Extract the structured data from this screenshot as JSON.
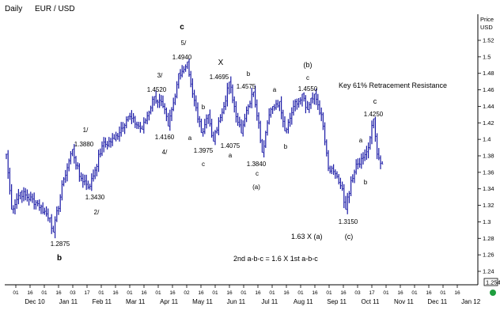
{
  "header": {
    "period": "Daily",
    "instrument": "EUR / USD"
  },
  "chart_data": {
    "type": "bar",
    "style": "ohlc",
    "series_color": "#1a1aa6",
    "y_axis_title": [
      "Price",
      "USD"
    ],
    "ylim": [
      1.23,
      1.535
    ],
    "y_ticks": [
      "1.52",
      "1.5",
      "1.48",
      "1.46",
      "1.44",
      "1.42",
      "1.4",
      "1.38",
      "1.36",
      "1.34",
      "1.32",
      "1.3",
      "1.28",
      "1.26",
      "1.24"
    ],
    "last_price": "1.254",
    "grid": false,
    "day_labels": [
      "01",
      "16",
      "01",
      "16",
      "03",
      "17",
      "01",
      "16",
      "01",
      "16",
      "01",
      "16",
      "02",
      "16",
      "01",
      "16",
      "01",
      "16",
      "01",
      "16",
      "01",
      "16",
      "01",
      "16",
      "03",
      "17",
      "01",
      "16",
      "01",
      "16",
      "01",
      "16"
    ],
    "month_labels": [
      "Dec 10",
      "Jan 11",
      "Feb 11",
      "Mar 11",
      "Apr 11",
      "May 11",
      "Jun 11",
      "Jul 11",
      "Aug 11",
      "Sep 11",
      "Oct 11",
      "Nov 11",
      "Dec 11",
      "Jan 12"
    ],
    "anchors": [
      [
        0,
        1.382
      ],
      [
        3,
        1.315
      ],
      [
        8,
        1.336
      ],
      [
        18,
        1.322
      ],
      [
        25,
        1.305
      ],
      [
        27,
        1.2875
      ],
      [
        33,
        1.352
      ],
      [
        38,
        1.388
      ],
      [
        42,
        1.355
      ],
      [
        48,
        1.343
      ],
      [
        55,
        1.392
      ],
      [
        62,
        1.4
      ],
      [
        70,
        1.428
      ],
      [
        78,
        1.412
      ],
      [
        85,
        1.452
      ],
      [
        90,
        1.44
      ],
      [
        93,
        1.416
      ],
      [
        97,
        1.452
      ],
      [
        99,
        1.48
      ],
      [
        103,
        1.488
      ],
      [
        104,
        1.494
      ],
      [
        107,
        1.455
      ],
      [
        112,
        1.408
      ],
      [
        116,
        1.43
      ],
      [
        119,
        1.3975
      ],
      [
        125,
        1.44
      ],
      [
        128,
        1.4695
      ],
      [
        131,
        1.44
      ],
      [
        135,
        1.4075
      ],
      [
        139,
        1.44
      ],
      [
        142,
        1.4575
      ],
      [
        145,
        1.42
      ],
      [
        147,
        1.384
      ],
      [
        150,
        1.42
      ],
      [
        153,
        1.44
      ],
      [
        157,
        1.446
      ],
      [
        160,
        1.41
      ],
      [
        165,
        1.44
      ],
      [
        170,
        1.455
      ],
      [
        173,
        1.436
      ],
      [
        175,
        1.45
      ],
      [
        177,
        1.455
      ],
      [
        181,
        1.43
      ],
      [
        185,
        1.365
      ],
      [
        190,
        1.355
      ],
      [
        193,
        1.34
      ],
      [
        195,
        1.315
      ],
      [
        198,
        1.35
      ],
      [
        201,
        1.37
      ],
      [
        205,
        1.378
      ],
      [
        208,
        1.39
      ],
      [
        211,
        1.425
      ],
      [
        213,
        1.382
      ],
      [
        216,
        1.37
      ]
    ],
    "annotations": [
      {
        "text": "c",
        "value": 1.494,
        "role": "wave",
        "bold": true
      },
      {
        "text": "5/",
        "value": 1.494,
        "role": "wave"
      },
      {
        "text": "1.4940",
        "value": 1.494,
        "role": "price"
      },
      {
        "text": "X",
        "value": 1.4695,
        "role": "wave"
      },
      {
        "text": "1.4695",
        "value": 1.4695,
        "role": "price"
      },
      {
        "text": "b",
        "value": 1.4575,
        "role": "wave"
      },
      {
        "text": "1.4575",
        "value": 1.4575,
        "role": "price"
      },
      {
        "text": "a",
        "value": 1.446,
        "role": "wave"
      },
      {
        "text": "(b)",
        "value": 1.455,
        "role": "wave"
      },
      {
        "text": "c",
        "value": 1.455,
        "role": "wave"
      },
      {
        "text": "1.4550",
        "value": 1.455,
        "role": "price"
      },
      {
        "text": "Key 61% Retracement Resistance",
        "role": "note"
      },
      {
        "text": "3/",
        "value": 1.452,
        "role": "wave"
      },
      {
        "text": "1.4520",
        "value": 1.452,
        "role": "price"
      },
      {
        "text": "b",
        "value": 1.43,
        "role": "wave"
      },
      {
        "text": "1.4160",
        "value": 1.416,
        "role": "price"
      },
      {
        "text": "4/",
        "value": 1.416,
        "role": "wave"
      },
      {
        "text": "1/",
        "value": 1.388,
        "role": "wave"
      },
      {
        "text": "1.3880",
        "value": 1.388,
        "role": "price"
      },
      {
        "text": "a",
        "value": 1.4,
        "role": "wave"
      },
      {
        "text": "1.3975",
        "value": 1.3975,
        "role": "price"
      },
      {
        "text": "c",
        "value": 1.3975,
        "role": "wave"
      },
      {
        "text": "1.4075",
        "value": 1.4075,
        "role": "price"
      },
      {
        "text": "a",
        "value": 1.4075,
        "role": "wave"
      },
      {
        "text": "b",
        "value": 1.41,
        "role": "wave"
      },
      {
        "text": "1.3840",
        "value": 1.384,
        "role": "price"
      },
      {
        "text": "c",
        "value": 1.384,
        "role": "wave"
      },
      {
        "text": "(a)",
        "value": 1.384,
        "role": "wave"
      },
      {
        "text": "c",
        "value": 1.425,
        "role": "wave"
      },
      {
        "text": "1.4250",
        "value": 1.425,
        "role": "price"
      },
      {
        "text": "a",
        "value": 1.39,
        "role": "wave"
      },
      {
        "text": "b",
        "value": 1.37,
        "role": "wave"
      },
      {
        "text": "1.3430",
        "value": 1.343,
        "role": "price"
      },
      {
        "text": "2/",
        "value": 1.343,
        "role": "wave"
      },
      {
        "text": "1.3150",
        "value": 1.315,
        "role": "price"
      },
      {
        "text": "1.63  X  (a)",
        "role": "note"
      },
      {
        "text": "(c)",
        "value": 1.315,
        "role": "wave"
      },
      {
        "text": "1.2875",
        "value": 1.2875,
        "role": "price"
      },
      {
        "text": "b",
        "value": 1.2875,
        "role": "wave",
        "bold": true
      },
      {
        "text": "2nd  a-b-c  =  1.6  X  1st  a-b-c",
        "role": "note"
      }
    ]
  },
  "status": {
    "indicator_color": "#1e9e3e",
    "indicator_icon": "status-dot-icon"
  }
}
